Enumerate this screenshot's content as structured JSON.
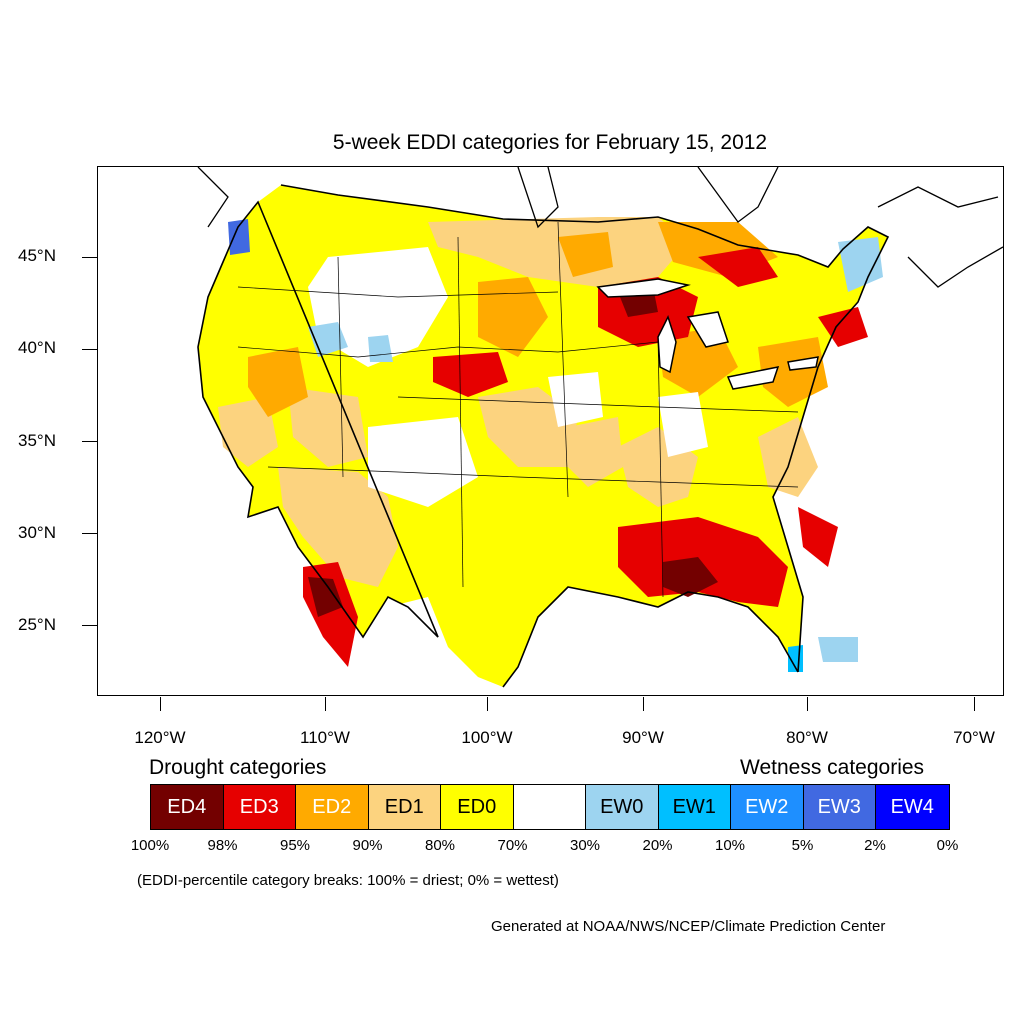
{
  "title": "5-week EDDI categories for February 15, 2012",
  "lat_labels": [
    "45°N",
    "40°N",
    "35°N",
    "30°N",
    "25°N"
  ],
  "lon_labels": [
    "120°W",
    "110°W",
    "100°W",
    "90°W",
    "80°W",
    "70°W"
  ],
  "legend": {
    "drought_heading": "Drought categories",
    "wetness_heading": "Wetness categories",
    "categories": [
      {
        "label": "ED4",
        "color": "#730000",
        "text_color": "#ffffff"
      },
      {
        "label": "ED3",
        "color": "#e60000",
        "text_color": "#ffffff"
      },
      {
        "label": "ED2",
        "color": "#ffaa00",
        "text_color": "#ffffff"
      },
      {
        "label": "ED1",
        "color": "#fcd37f",
        "text_color": "#000000"
      },
      {
        "label": "ED0",
        "color": "#ffff00",
        "text_color": "#000000"
      },
      {
        "label": "",
        "color": "#ffffff",
        "text_color": "#000000"
      },
      {
        "label": "EW0",
        "color": "#9dd4f0",
        "text_color": "#000000"
      },
      {
        "label": "EW1",
        "color": "#00bfff",
        "text_color": "#000000"
      },
      {
        "label": "EW2",
        "color": "#1e8fff",
        "text_color": "#ffffff"
      },
      {
        "label": "EW3",
        "color": "#4169e1",
        "text_color": "#ffffff"
      },
      {
        "label": "EW4",
        "color": "#0000ff",
        "text_color": "#ffffff"
      }
    ],
    "breaks": [
      "100%",
      "98%",
      "95%",
      "90%",
      "80%",
      "70%",
      "30%",
      "20%",
      "10%",
      "5%",
      "2%",
      "0%"
    ]
  },
  "note": "(EDDI-percentile category breaks: 100% = driest; 0% = wettest)",
  "credit": "Generated at NOAA/NWS/NCEP/Climate Prediction Center"
}
